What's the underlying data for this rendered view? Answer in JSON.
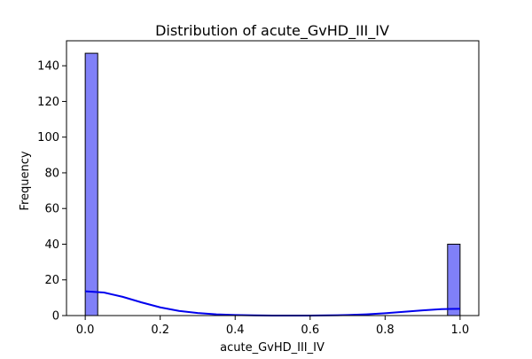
{
  "chart_data": {
    "type": "bar",
    "title": "Distribution of acute_GvHD_III_IV",
    "xlabel": "acute_GvHD_III_IV",
    "ylabel": "Frequency",
    "xlim": [
      -0.05,
      1.05
    ],
    "ylim": [
      0,
      154
    ],
    "xticks": [
      0.0,
      0.2,
      0.4,
      0.6,
      0.8,
      1.0
    ],
    "xtick_labels": [
      "0.0",
      "0.2",
      "0.4",
      "0.6",
      "0.8",
      "1.0"
    ],
    "yticks": [
      0,
      20,
      40,
      60,
      80,
      100,
      120,
      140
    ],
    "ytick_labels": [
      "0",
      "20",
      "40",
      "60",
      "80",
      "100",
      "120",
      "140"
    ],
    "bins": [
      {
        "x0": 0.0,
        "x1": 0.0333,
        "count": 147
      },
      {
        "x0": 0.9667,
        "x1": 1.0,
        "count": 40
      }
    ],
    "kde": {
      "x": [
        0.0,
        0.05,
        0.1,
        0.15,
        0.2,
        0.25,
        0.3,
        0.35,
        0.4,
        0.45,
        0.5,
        0.55,
        0.6,
        0.65,
        0.7,
        0.75,
        0.8,
        0.85,
        0.9,
        0.95,
        1.0
      ],
      "y": [
        13.6,
        12.9,
        10.5,
        7.4,
        4.6,
        2.6,
        1.4,
        0.7,
        0.3,
        0.1,
        0.0,
        0.0,
        0.0,
        0.1,
        0.3,
        0.7,
        1.3,
        2.1,
        2.9,
        3.6,
        3.8
      ]
    },
    "grid": false,
    "colors": {
      "bar_fill": "#8080f8",
      "bar_edge": "#000000",
      "kde_line": "#0000ee"
    }
  }
}
